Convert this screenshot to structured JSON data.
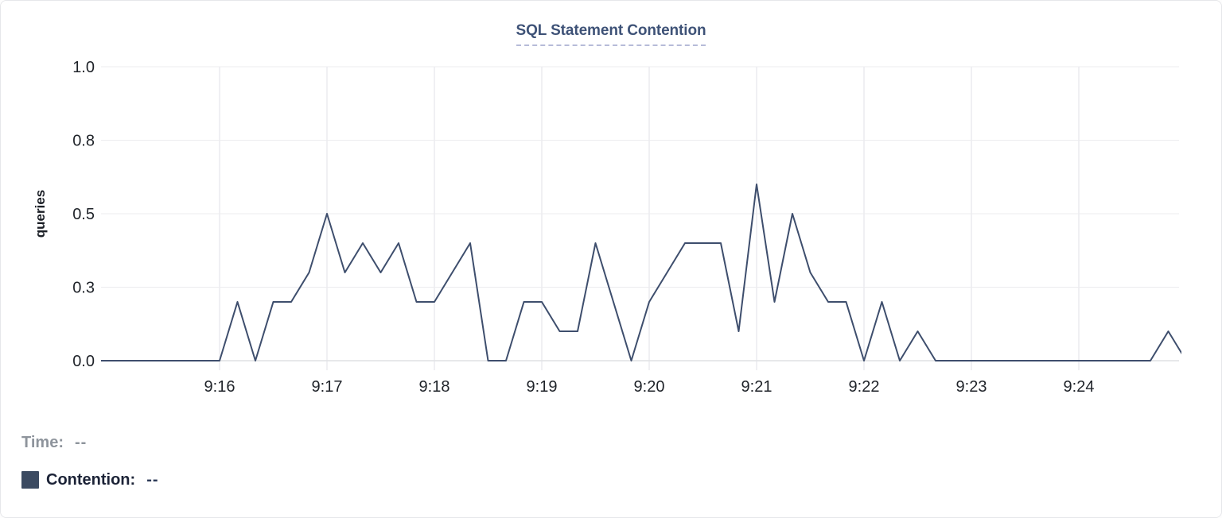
{
  "card": {
    "title": "SQL Statement Contention"
  },
  "chart_data": {
    "type": "line",
    "title": "SQL Statement Contention",
    "xlabel": "",
    "ylabel": "queries",
    "series_name": "Contention",
    "line_color": "#3e4e6d",
    "ylim": [
      0,
      1.0
    ],
    "grid": true,
    "y_ticks": [
      {
        "value": 0.0,
        "label": "0.0"
      },
      {
        "value": 0.25,
        "label": "0.3"
      },
      {
        "value": 0.5,
        "label": "0.5"
      },
      {
        "value": 0.75,
        "label": "0.8"
      },
      {
        "value": 1.0,
        "label": "1.0"
      }
    ],
    "x_ticks": [
      "9:16",
      "9:17",
      "9:18",
      "9:19",
      "9:20",
      "9:21",
      "9:22",
      "9:23",
      "9:24"
    ],
    "sample_interval_seconds": 10,
    "times": [
      "9:15:00",
      "9:15:10",
      "9:15:20",
      "9:15:30",
      "9:15:40",
      "9:15:50",
      "9:16:00",
      "9:16:10",
      "9:16:20",
      "9:16:30",
      "9:16:40",
      "9:16:50",
      "9:17:00",
      "9:17:10",
      "9:17:20",
      "9:17:30",
      "9:17:40",
      "9:17:50",
      "9:18:00",
      "9:18:10",
      "9:18:20",
      "9:18:30",
      "9:18:40",
      "9:18:50",
      "9:19:00",
      "9:19:10",
      "9:19:20",
      "9:19:30",
      "9:19:40",
      "9:19:50",
      "9:20:00",
      "9:20:10",
      "9:20:20",
      "9:20:30",
      "9:20:40",
      "9:20:50",
      "9:21:00",
      "9:21:10",
      "9:21:20",
      "9:21:30",
      "9:21:40",
      "9:21:50",
      "9:22:00",
      "9:22:10",
      "9:22:20",
      "9:22:30",
      "9:22:40",
      "9:22:50",
      "9:23:00",
      "9:23:10",
      "9:23:20",
      "9:23:30",
      "9:23:40",
      "9:23:50",
      "9:24:00",
      "9:24:10",
      "9:24:20",
      "9:24:30",
      "9:24:40",
      "9:24:50",
      "9:25:00"
    ],
    "values": [
      0,
      0,
      0,
      0,
      0,
      0,
      0,
      0.2,
      0,
      0.2,
      0.2,
      0.3,
      0.5,
      0.3,
      0.4,
      0.3,
      0.4,
      0.2,
      0.2,
      0.3,
      0.4,
      0,
      0,
      0.2,
      0.2,
      0.1,
      0.1,
      0.4,
      0.2,
      0,
      0.2,
      0.3,
      0.4,
      0.4,
      0.4,
      0.1,
      0.6,
      0.2,
      0.5,
      0.3,
      0.2,
      0.2,
      0,
      0.2,
      0,
      0.1,
      0,
      0,
      0,
      0,
      0,
      0,
      0,
      0,
      0,
      0,
      0,
      0,
      0,
      0.1,
      0
    ]
  },
  "legend": {
    "time_label": "Time:",
    "time_value": "--",
    "series_label": "Contention:",
    "series_value": "--",
    "swatch_color": "#3b4a61"
  }
}
